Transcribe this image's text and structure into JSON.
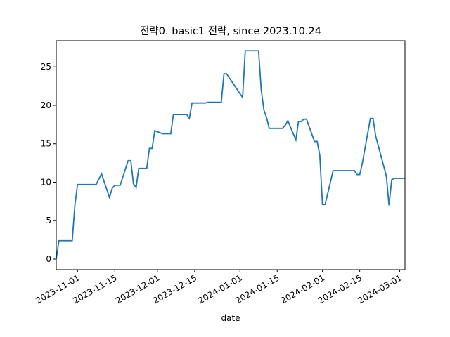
{
  "chart_data": {
    "type": "line",
    "title": "전략0. basic1 전략, since 2023.10.24",
    "x_label": "date",
    "x": [
      "2023-10-24",
      "2023-10-25",
      "2023-10-30",
      "2023-10-31",
      "2023-11-01",
      "2023-11-08",
      "2023-11-10",
      "2023-11-13",
      "2023-11-14",
      "2023-11-15",
      "2023-11-17",
      "2023-11-20",
      "2023-11-21",
      "2023-11-22",
      "2023-11-23",
      "2023-11-24",
      "2023-11-27",
      "2023-11-28",
      "2023-11-29",
      "2023-11-30",
      "2023-12-03",
      "2023-12-06",
      "2023-12-07",
      "2023-12-12",
      "2023-12-13",
      "2023-12-14",
      "2023-12-19",
      "2023-12-20",
      "2023-12-25",
      "2023-12-26",
      "2023-12-27",
      "2024-01-02",
      "2024-01-03",
      "2024-01-08",
      "2024-01-09",
      "2024-01-10",
      "2024-01-11",
      "2024-01-12",
      "2024-01-17",
      "2024-01-18",
      "2024-01-19",
      "2024-01-22",
      "2024-01-23",
      "2024-01-24",
      "2024-01-25",
      "2024-01-26",
      "2024-01-29",
      "2024-01-30",
      "2024-01-31",
      "2024-02-01",
      "2024-02-02",
      "2024-02-05",
      "2024-02-13",
      "2024-02-14",
      "2024-02-15",
      "2024-02-16",
      "2024-02-19",
      "2024-02-20",
      "2024-02-21",
      "2024-02-25",
      "2024-02-26",
      "2024-02-27",
      "2024-02-28",
      "2024-03-03"
    ],
    "series": [
      {
        "color": "#1f77b4",
        "values": [
          0,
          2.4,
          2.4,
          7,
          9.7,
          9.7,
          11.1,
          8,
          9.2,
          9.6,
          9.6,
          12.8,
          12.8,
          9.8,
          9.3,
          11.8,
          11.8,
          14.4,
          14.4,
          16.7,
          16.3,
          16.3,
          18.8,
          18.8,
          18.3,
          20.3,
          20.3,
          20.4,
          20.4,
          24.1,
          24.1,
          21,
          27.1,
          27.1,
          22,
          19.4,
          18.4,
          17,
          17,
          17.4,
          18,
          15.5,
          17.9,
          17.9,
          18.2,
          18.2,
          15.3,
          15.3,
          13.5,
          7.1,
          7.1,
          11.5,
          11.5,
          11,
          11,
          12.5,
          18.3,
          18.3,
          16,
          10.8,
          7,
          10.3,
          10.5,
          10.5
        ]
      }
    ],
    "xlim": [
      "2023-10-24",
      "2024-03-03"
    ],
    "xticks": [
      "2023-11-01",
      "2023-11-15",
      "2023-12-01",
      "2023-12-15",
      "2024-01-01",
      "2024-01-15",
      "2024-02-01",
      "2024-02-15",
      "2024-03-01"
    ],
    "ylim": [
      -1.37,
      28.4
    ],
    "yticks": [
      0,
      5,
      10,
      15,
      20,
      25
    ]
  }
}
